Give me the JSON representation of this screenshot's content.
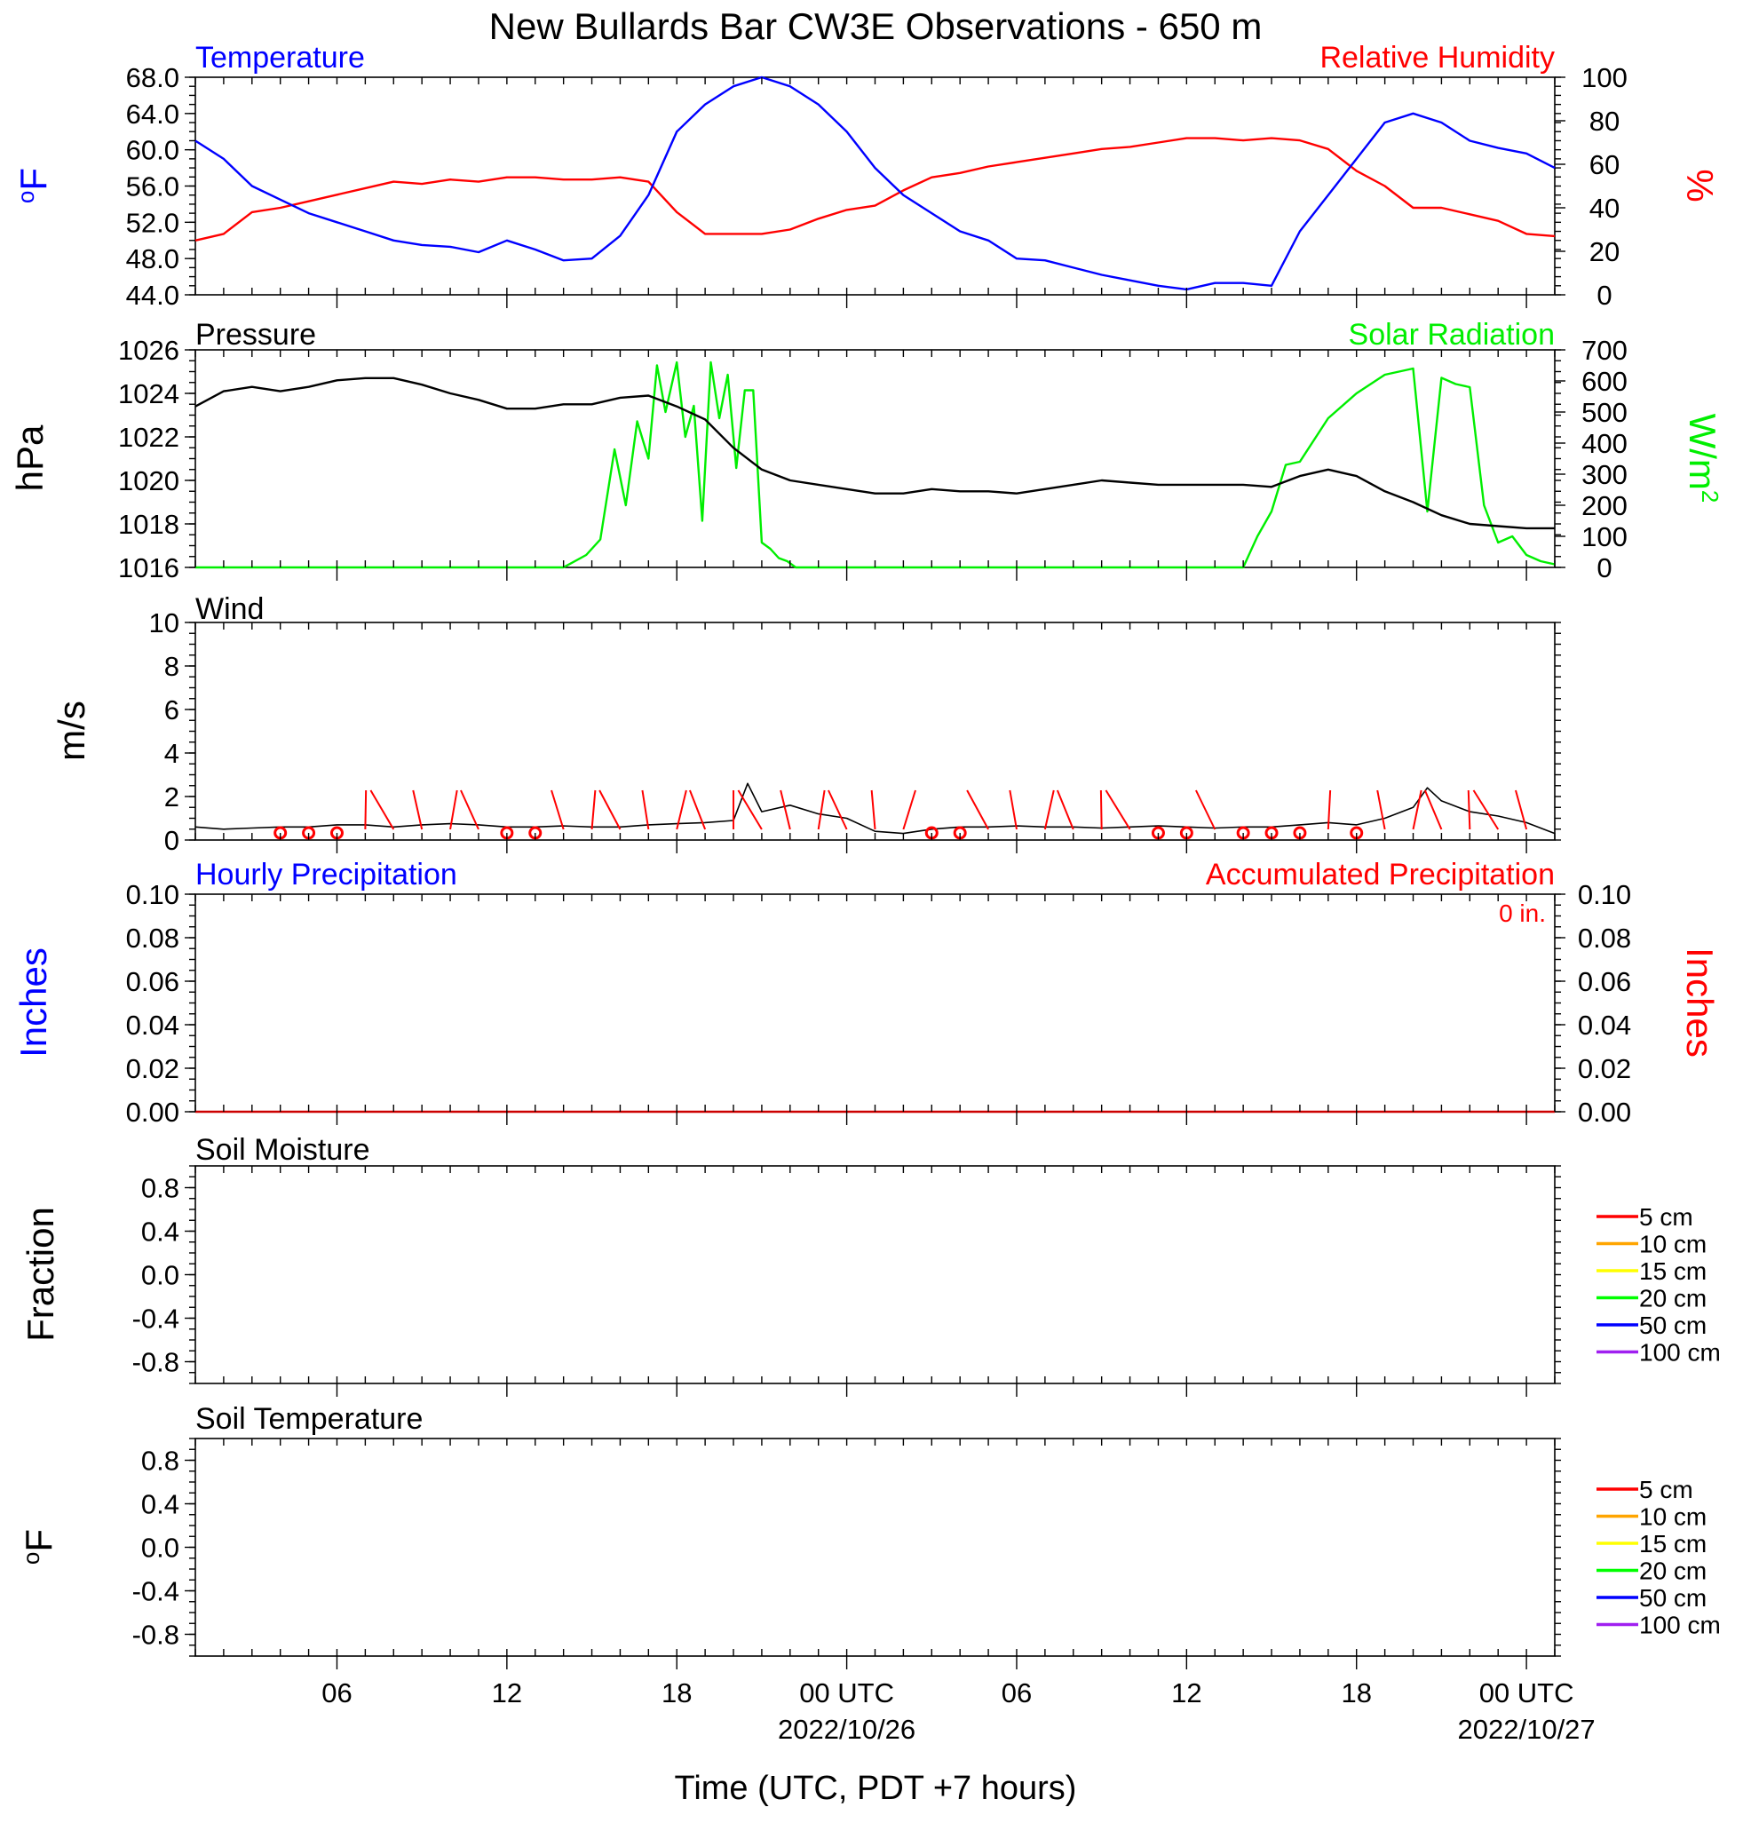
{
  "title": "New Bullards Bar CW3E Observations - 650 m",
  "xaxis": {
    "label": "Time (UTC, PDT +7 hours)",
    "ticks": [
      {
        "hour": 6,
        "label": "06",
        "sub": ""
      },
      {
        "hour": 12,
        "label": "12",
        "sub": ""
      },
      {
        "hour": 18,
        "label": "18",
        "sub": ""
      },
      {
        "hour": 24,
        "label": "00 UTC",
        "sub": "2022/10/26"
      },
      {
        "hour": 30,
        "label": "06",
        "sub": ""
      },
      {
        "hour": 36,
        "label": "12",
        "sub": ""
      },
      {
        "hour": 42,
        "label": "18",
        "sub": ""
      },
      {
        "hour": 48,
        "label": "00 UTC",
        "sub": "2022/10/27"
      }
    ],
    "range_hours": [
      1,
      49
    ]
  },
  "colors": {
    "temperature": "#0000ff",
    "humidity": "#ff0000",
    "pressure": "#000000",
    "solar": "#00ee00",
    "wind_barb": "#ff0000",
    "wind_speed": "#000000",
    "precip_hourly": "#0000ff",
    "precip_accum": "#cc0000",
    "soil_5cm": "#ff0000",
    "soil_10cm": "#ffa500",
    "soil_15cm": "#ffff00",
    "soil_20cm": "#00ff00",
    "soil_50cm": "#0000ff",
    "soil_100cm": "#a020f0"
  },
  "panels": {
    "temp_rh": {
      "left_title": "Temperature",
      "right_title": "Relative Humidity",
      "left_unit": "oF",
      "right_unit": "%",
      "left_ticks": [
        "44.0",
        "48.0",
        "52.0",
        "56.0",
        "60.0",
        "64.0",
        "68.0"
      ],
      "right_ticks": [
        "0",
        "20",
        "40",
        "60",
        "80",
        "100"
      ]
    },
    "pressure_solar": {
      "left_title": "Pressure",
      "right_title": "Solar Radiation",
      "left_unit": "hPa",
      "right_unit": "W/m2",
      "left_ticks": [
        "1016",
        "1018",
        "1020",
        "1022",
        "1024",
        "1026"
      ],
      "right_ticks": [
        "0",
        "100",
        "200",
        "300",
        "400",
        "500",
        "600",
        "700"
      ]
    },
    "wind": {
      "left_title": "Wind",
      "left_unit": "m/s",
      "left_ticks": [
        "0",
        "2",
        "4",
        "6",
        "8",
        "10"
      ]
    },
    "precip": {
      "left_title": "Hourly Precipitation",
      "right_title": "Accumulated Precipitation",
      "total_label": "0 in.",
      "left_unit": "Inches",
      "right_unit": "Inches",
      "left_ticks": [
        "0.00",
        "0.02",
        "0.04",
        "0.06",
        "0.08",
        "0.10"
      ],
      "right_ticks": [
        "0.00",
        "0.02",
        "0.04",
        "0.06",
        "0.08",
        "0.10"
      ]
    },
    "soil_moisture": {
      "left_title": "Soil Moisture",
      "left_unit": "Fraction",
      "left_ticks": [
        "-0.8",
        "-0.4",
        "0.0",
        "0.4",
        "0.8"
      ],
      "legend": [
        "5 cm",
        "10 cm",
        "15 cm",
        "20 cm",
        "50 cm",
        "100 cm"
      ]
    },
    "soil_temp": {
      "left_title": "Soil Temperature",
      "left_unit": "oF",
      "left_ticks": [
        "-0.8",
        "-0.4",
        "0.0",
        "0.4",
        "0.8"
      ],
      "legend": [
        "5 cm",
        "10 cm",
        "15 cm",
        "20 cm",
        "50 cm",
        "100 cm"
      ]
    }
  },
  "chart_data": [
    {
      "type": "line",
      "title": "Temperature / Relative Humidity",
      "x_units": "hours since 2022/10/25 00 UTC",
      "ylim": [
        44,
        68
      ],
      "y2lim": [
        0,
        100
      ],
      "series": [
        {
          "name": "Temperature",
          "axis": "left",
          "x": [
            1,
            2,
            3,
            4,
            5,
            6,
            7,
            8,
            9,
            10,
            11,
            12,
            13,
            14,
            15,
            16,
            17,
            18,
            19,
            20,
            21,
            22,
            23,
            24,
            25,
            26,
            27,
            28,
            29,
            30,
            31,
            32,
            33,
            34,
            35,
            36,
            37,
            38,
            39,
            40,
            41,
            42,
            43,
            44,
            45,
            46,
            47,
            48,
            49
          ],
          "y": [
            61,
            59,
            56,
            54.5,
            53,
            52,
            51,
            50,
            49.5,
            49.3,
            48.7,
            50,
            49,
            47.8,
            48,
            50.5,
            55,
            62,
            65,
            67,
            68,
            67,
            65,
            62,
            58,
            55,
            53,
            51,
            50,
            48,
            47.8,
            47,
            46.2,
            45.6,
            45,
            44.6,
            45.3,
            45.3,
            45,
            51,
            55,
            59,
            63,
            64,
            63,
            61,
            60.2,
            59.6,
            58
          ]
        },
        {
          "name": "Relative Humidity",
          "axis": "right",
          "x": [
            1,
            2,
            3,
            4,
            5,
            6,
            7,
            8,
            9,
            10,
            11,
            12,
            13,
            14,
            15,
            16,
            17,
            18,
            19,
            20,
            21,
            22,
            23,
            24,
            25,
            26,
            27,
            28,
            29,
            30,
            31,
            32,
            33,
            34,
            35,
            36,
            37,
            38,
            39,
            40,
            41,
            42,
            43,
            44,
            45,
            46,
            47,
            48,
            49
          ],
          "y": [
            25,
            28,
            38,
            40,
            43,
            46,
            49,
            52,
            51,
            53,
            52,
            54,
            54,
            53,
            53,
            54,
            52,
            38,
            28,
            28,
            28,
            30,
            35,
            39,
            41,
            48,
            54,
            56,
            59,
            61,
            63,
            65,
            67,
            68,
            70,
            72,
            72,
            71,
            72,
            71,
            67,
            57,
            50,
            40,
            40,
            37,
            34,
            28,
            27
          ]
        }
      ]
    },
    {
      "type": "line",
      "title": "Pressure / Solar Radiation",
      "x_units": "hours since 2022/10/25 00 UTC",
      "ylim": [
        1016,
        1026
      ],
      "y2lim": [
        0,
        700
      ],
      "series": [
        {
          "name": "Pressure",
          "axis": "left",
          "x": [
            1,
            2,
            3,
            4,
            5,
            6,
            7,
            8,
            9,
            10,
            11,
            12,
            13,
            14,
            15,
            16,
            17,
            18,
            19,
            20,
            21,
            22,
            23,
            24,
            25,
            26,
            27,
            28,
            29,
            30,
            31,
            32,
            33,
            34,
            35,
            36,
            37,
            38,
            39,
            40,
            41,
            42,
            43,
            44,
            45,
            46,
            47,
            48,
            49
          ],
          "y": [
            1023.4,
            1024.1,
            1024.3,
            1024.1,
            1024.3,
            1024.6,
            1024.7,
            1024.7,
            1024.4,
            1024.0,
            1023.7,
            1023.3,
            1023.3,
            1023.5,
            1023.5,
            1023.8,
            1023.9,
            1023.4,
            1022.8,
            1021.5,
            1020.5,
            1020.0,
            1019.8,
            1019.6,
            1019.4,
            1019.4,
            1019.6,
            1019.5,
            1019.5,
            1019.4,
            1019.6,
            1019.8,
            1020.0,
            1019.9,
            1019.8,
            1019.8,
            1019.8,
            1019.8,
            1019.7,
            1020.2,
            1020.5,
            1020.2,
            1019.5,
            1019.0,
            1018.4,
            1018.0,
            1017.9,
            1017.8,
            1017.8
          ]
        },
        {
          "name": "Solar Radiation",
          "axis": "right",
          "x": [
            1,
            14,
            14.8,
            15.3,
            15.8,
            16.2,
            16.6,
            17,
            17.3,
            17.6,
            18,
            18.3,
            18.6,
            18.9,
            19.2,
            19.5,
            19.8,
            20.1,
            20.4,
            20.7,
            21,
            21.3,
            21.6,
            21.9,
            22.2,
            22.5,
            22.8,
            23.2,
            23.6,
            24,
            25,
            38,
            38.5,
            39,
            39.5,
            40,
            41,
            42,
            43,
            44,
            44.5,
            45,
            45.5,
            46,
            46.5,
            47,
            47.5,
            48,
            48.5,
            49
          ],
          "y": [
            0,
            0,
            40,
            90,
            380,
            200,
            470,
            350,
            650,
            500,
            660,
            420,
            520,
            150,
            660,
            480,
            620,
            320,
            570,
            570,
            80,
            60,
            30,
            20,
            0,
            0,
            0,
            0,
            0,
            0,
            0,
            0,
            100,
            180,
            330,
            340,
            480,
            560,
            620,
            640,
            180,
            610,
            590,
            580,
            200,
            80,
            100,
            40,
            20,
            10
          ]
        }
      ]
    },
    {
      "type": "line",
      "title": "Wind",
      "x_units": "hours since 2022/10/25 00 UTC",
      "ylim": [
        0,
        10
      ],
      "series": [
        {
          "name": "Wind Speed",
          "x": [
            1,
            2,
            3,
            4,
            5,
            6,
            7,
            8,
            9,
            10,
            11,
            12,
            13,
            14,
            15,
            16,
            17,
            18,
            19,
            20,
            20.5,
            21,
            22,
            23,
            24,
            25,
            26,
            27,
            28,
            29,
            30,
            31,
            32,
            33,
            34,
            35,
            36,
            37,
            38,
            39,
            40,
            41,
            42,
            43,
            44,
            44.5,
            45,
            46,
            47,
            48,
            49
          ],
          "y": [
            0.6,
            0.5,
            0.55,
            0.6,
            0.6,
            0.7,
            0.7,
            0.6,
            0.7,
            0.75,
            0.7,
            0.6,
            0.6,
            0.65,
            0.6,
            0.6,
            0.7,
            0.75,
            0.8,
            0.9,
            2.6,
            1.3,
            1.6,
            1.2,
            1.0,
            0.4,
            0.3,
            0.5,
            0.6,
            0.6,
            0.65,
            0.6,
            0.6,
            0.55,
            0.6,
            0.65,
            0.6,
            0.55,
            0.6,
            0.6,
            0.7,
            0.8,
            0.7,
            1.0,
            1.5,
            2.4,
            1.8,
            1.3,
            1.1,
            0.8,
            0.3
          ]
        }
      ]
    },
    {
      "type": "line",
      "title": "Hourly / Accumulated Precipitation",
      "x_units": "hours since 2022/10/25 00 UTC",
      "ylim": [
        0,
        0.1
      ],
      "y2lim": [
        0,
        0.1
      ],
      "series": [
        {
          "name": "Hourly Precipitation",
          "axis": "left",
          "x": [
            1,
            49
          ],
          "y": [
            0,
            0
          ]
        },
        {
          "name": "Accumulated Precipitation",
          "axis": "right",
          "x": [
            1,
            49
          ],
          "y": [
            0,
            0
          ]
        }
      ]
    },
    {
      "type": "line",
      "title": "Soil Moisture",
      "ylim": [
        -1,
        1
      ],
      "series": [
        {
          "name": "5 cm",
          "x": [],
          "y": []
        },
        {
          "name": "10 cm",
          "x": [],
          "y": []
        },
        {
          "name": "15 cm",
          "x": [],
          "y": []
        },
        {
          "name": "20 cm",
          "x": [],
          "y": []
        },
        {
          "name": "50 cm",
          "x": [],
          "y": []
        },
        {
          "name": "100 cm",
          "x": [],
          "y": []
        }
      ]
    },
    {
      "type": "line",
      "title": "Soil Temperature",
      "ylim": [
        -1,
        1
      ],
      "series": [
        {
          "name": "5 cm",
          "x": [],
          "y": []
        },
        {
          "name": "10 cm",
          "x": [],
          "y": []
        },
        {
          "name": "15 cm",
          "x": [],
          "y": []
        },
        {
          "name": "20 cm",
          "x": [],
          "y": []
        },
        {
          "name": "50 cm",
          "x": [],
          "y": []
        },
        {
          "name": "100 cm",
          "x": [],
          "y": []
        }
      ]
    }
  ]
}
